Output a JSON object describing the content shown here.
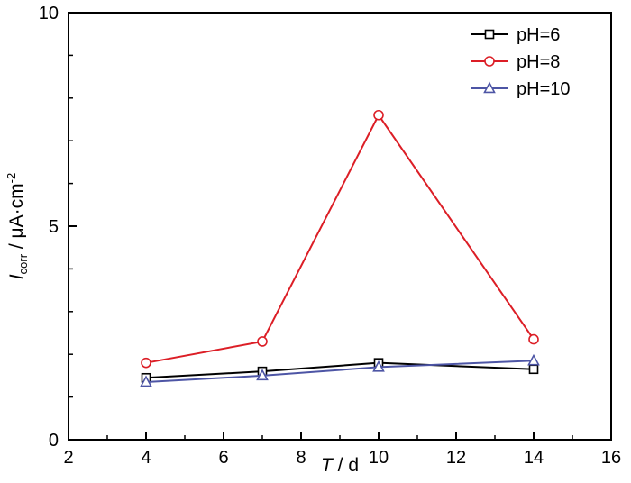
{
  "chart_data": {
    "type": "line",
    "x": [
      4,
      7,
      10,
      14
    ],
    "series": [
      {
        "name": "pH=6",
        "color": "#000000",
        "marker": "square",
        "values": [
          1.45,
          1.6,
          1.8,
          1.65
        ]
      },
      {
        "name": "pH=8",
        "color": "#dc1e26",
        "marker": "circle",
        "values": [
          1.8,
          2.3,
          7.6,
          2.35
        ]
      },
      {
        "name": "pH=10",
        "color": "#4d55a5",
        "marker": "triangle",
        "values": [
          1.35,
          1.5,
          1.7,
          1.85
        ]
      }
    ],
    "xlabel": {
      "var": "T",
      "rest": " / d"
    },
    "ylabel": {
      "var": "I",
      "sub": "corr",
      "mid": " / μA·cm",
      "sup": "-2"
    },
    "xlim": [
      2,
      16
    ],
    "ylim": [
      0,
      10
    ],
    "xticks": [
      2,
      4,
      6,
      8,
      10,
      12,
      14,
      16
    ],
    "yticks": [
      0,
      5,
      10
    ],
    "x_minor_step": 1,
    "y_minor_step": 1,
    "grid": false,
    "legend_position": "top-right",
    "axis_color": "#000000",
    "background_color": "#ffffff"
  }
}
